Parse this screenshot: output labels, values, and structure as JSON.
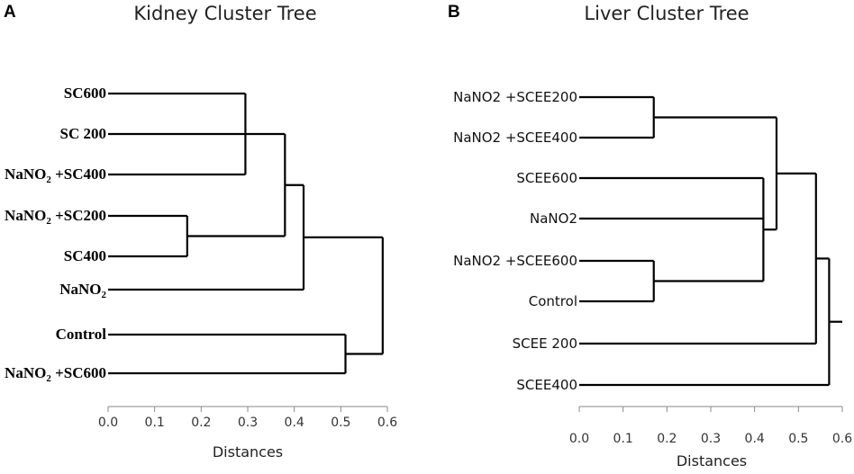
{
  "chart_data": [
    {
      "panel": "A",
      "type": "dendrogram",
      "title": "Kidney Cluster Tree",
      "xlabel": "Distances",
      "xlim": [
        0.0,
        0.6
      ],
      "ticks": [
        "0.0",
        "0.1",
        "0.2",
        "0.3",
        "0.4",
        "0.5",
        "0.6"
      ],
      "leaf_style": "serif",
      "leaves": [
        {
          "id": "SC600",
          "label": "SC600",
          "color": "#7ab648"
        },
        {
          "id": "SC200",
          "label": "SC 200",
          "color": "#7ab648"
        },
        {
          "id": "NSC400",
          "label": "NaNO",
          "sub": "2",
          "suffix": " +SC400",
          "color": "#7ab648"
        },
        {
          "id": "NSC200",
          "label": "NaNO",
          "sub": "2",
          "suffix": " +SC200",
          "color": "#f0a050"
        },
        {
          "id": "SC400",
          "label": "SC400",
          "color": "#f0a050"
        },
        {
          "id": "NaNO2",
          "label": "NaNO",
          "sub": "2",
          "suffix": "",
          "color": "#000000"
        },
        {
          "id": "Control",
          "label": "Control",
          "color": "#000000"
        },
        {
          "id": "NSC600",
          "label": "NaNO",
          "sub": "2",
          "suffix": " +SC600",
          "color": "#000000"
        }
      ],
      "merges": [
        {
          "id": "k1",
          "children": [
            "SC600",
            "SC200",
            "NSC400"
          ],
          "height": 0.295
        },
        {
          "id": "k2",
          "children": [
            "NSC200",
            "SC400"
          ],
          "height": 0.17
        },
        {
          "id": "k3",
          "children": [
            "k1",
            "k2"
          ],
          "height": 0.38
        },
        {
          "id": "k4",
          "children": [
            "k3",
            "NaNO2"
          ],
          "height": 0.42
        },
        {
          "id": "k5",
          "children": [
            "Control",
            "NSC600"
          ],
          "height": 0.51
        },
        {
          "id": "k6",
          "children": [
            "k4",
            "k5"
          ],
          "height": 0.59
        }
      ]
    },
    {
      "panel": "B",
      "type": "dendrogram",
      "title": "Liver Cluster Tree",
      "xlabel": "Distances",
      "xlim": [
        0.0,
        0.6
      ],
      "ticks": [
        "0.0",
        "0.1",
        "0.2",
        "0.3",
        "0.4",
        "0.5",
        "0.6"
      ],
      "leaf_style": "sans",
      "leaves": [
        {
          "id": "NSCEE200",
          "label": "NaNO2 +SCEE200",
          "color": "#7ab648"
        },
        {
          "id": "NSCEE400",
          "label": "NaNO2 +SCEE400",
          "color": "#7ab648"
        },
        {
          "id": "SCEE600",
          "label": "SCEE600",
          "color": "#000000"
        },
        {
          "id": "NaNO2",
          "label": "NaNO2",
          "color": "#000000"
        },
        {
          "id": "NSCEE600",
          "label": "NaNO2 +SCEE600",
          "color": "#d64545"
        },
        {
          "id": "Control",
          "label": "Control",
          "color": "#d64545"
        },
        {
          "id": "SCEE200",
          "label": "SCEE 200",
          "color": "#000000"
        },
        {
          "id": "SCEE400",
          "label": "SCEE400",
          "color": "#000000"
        }
      ],
      "merges": [
        {
          "id": "l1",
          "children": [
            "NSCEE200",
            "NSCEE400"
          ],
          "height": 0.17
        },
        {
          "id": "l2",
          "children": [
            "NSCEE600",
            "Control"
          ],
          "height": 0.17
        },
        {
          "id": "l3",
          "children": [
            "SCEE600",
            "NaNO2",
            "l2"
          ],
          "height": 0.42
        },
        {
          "id": "l4",
          "children": [
            "l1",
            "l3"
          ],
          "height": 0.45
        },
        {
          "id": "l5",
          "children": [
            "l4",
            "SCEE200"
          ],
          "height": 0.54
        },
        {
          "id": "l6",
          "children": [
            "l5",
            "SCEE400"
          ],
          "height": 0.57
        },
        {
          "id": "l7",
          "children": [
            "l6"
          ],
          "height": 0.6
        }
      ]
    }
  ]
}
